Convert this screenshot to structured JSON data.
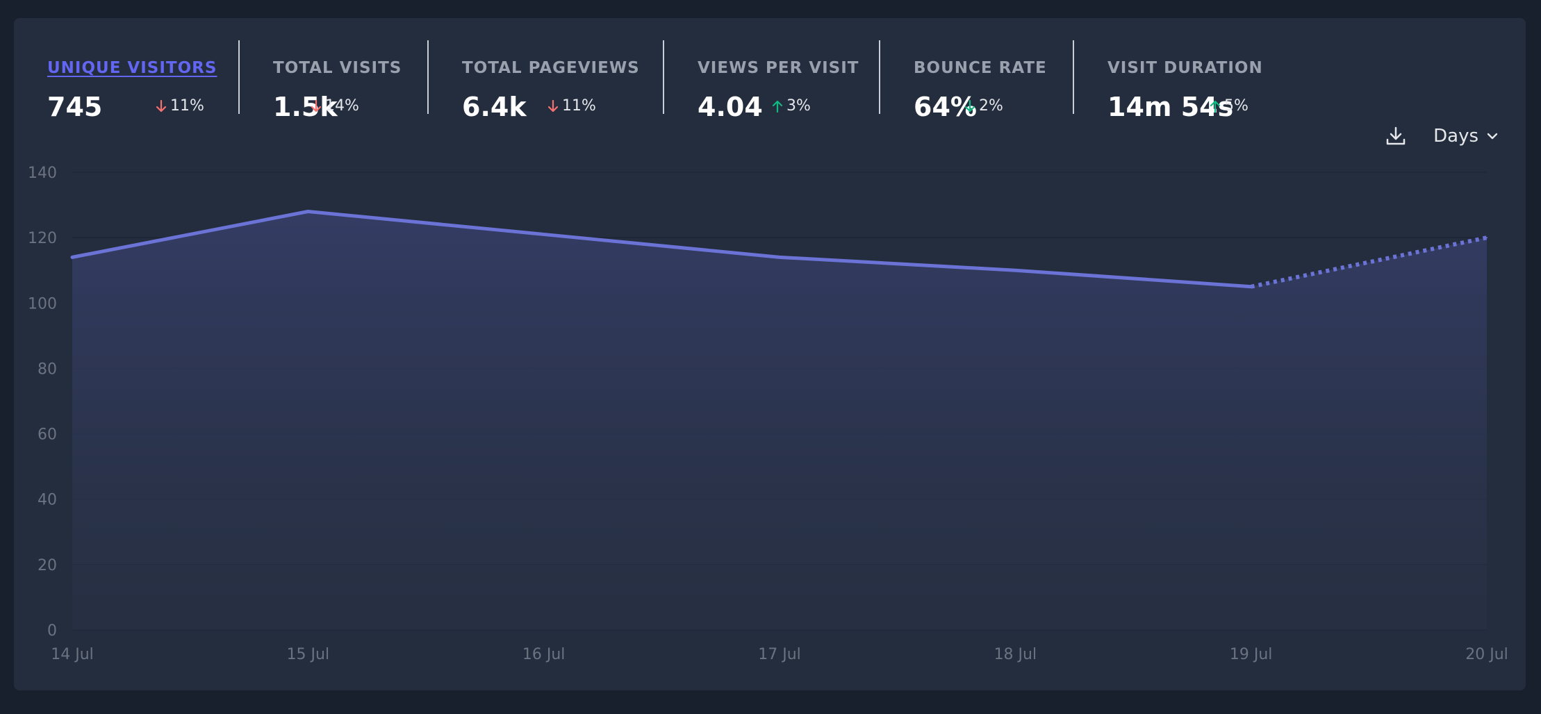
{
  "stats": [
    {
      "label": "UNIQUE VISITORS",
      "value": "745",
      "change": "11%",
      "direction": "down",
      "active": true
    },
    {
      "label": "TOTAL VISITS",
      "value": "1.5k",
      "change": "14%",
      "direction": "down",
      "active": false
    },
    {
      "label": "TOTAL PAGEVIEWS",
      "value": "6.4k",
      "change": "11%",
      "direction": "down",
      "active": false
    },
    {
      "label": "VIEWS PER VISIT",
      "value": "4.04",
      "change": "3%",
      "direction": "up",
      "active": false
    },
    {
      "label": "BOUNCE RATE",
      "value": "64%",
      "change": "2%",
      "direction": "down",
      "active": false
    },
    {
      "label": "VISIT DURATION",
      "value": "14m 54s",
      "change": "5%",
      "direction": "up",
      "active": false
    }
  ],
  "toolbar": {
    "download_icon": "download-icon",
    "period_label": "Days",
    "period_icon": "chevron-down-icon"
  },
  "colors": {
    "accent": "#6366f1",
    "line": "#6b73d6",
    "down": "#f87171",
    "up": "#10b981"
  },
  "chart_data": {
    "type": "area",
    "categories": [
      "14 Jul",
      "15 Jul",
      "16 Jul",
      "17 Jul",
      "18 Jul",
      "19 Jul",
      "20 Jul"
    ],
    "series": [
      {
        "values": [
          114,
          128,
          121,
          114,
          110,
          105,
          120
        ]
      }
    ],
    "incomplete_last_segment": true,
    "ylim": [
      0,
      140
    ],
    "yticks": [
      0,
      20,
      40,
      60,
      80,
      100,
      120,
      140
    ],
    "grid": true,
    "legend": "none"
  }
}
